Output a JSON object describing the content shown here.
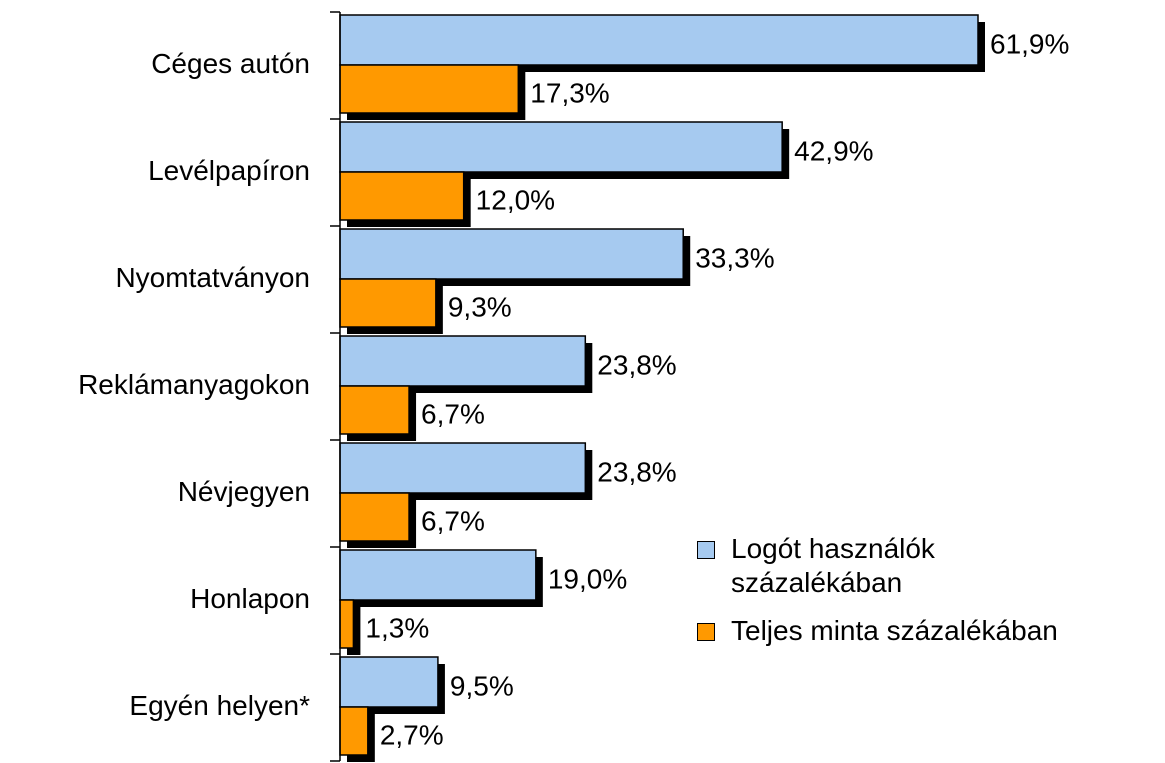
{
  "chart_data": {
    "type": "bar",
    "orientation": "horizontal",
    "categories": [
      "Céges autón",
      "Levélpapíron",
      "Nyomtatványon",
      "Reklámanyagokon",
      "Névjegyen",
      "Honlapon",
      "Egyén helyen*"
    ],
    "series": [
      {
        "name": "Logót használók százalékában",
        "color": "#a6caf0",
        "values": [
          61.9,
          42.9,
          33.3,
          23.8,
          23.8,
          19.0,
          9.5
        ],
        "value_labels": [
          "61,9%",
          "42,9%",
          "33,3%",
          "23,8%",
          "23,8%",
          "19,0%",
          "9,5%"
        ]
      },
      {
        "name": "Teljes minta százalékában",
        "color": "#ff9900",
        "values": [
          17.3,
          12.0,
          9.3,
          6.7,
          6.7,
          1.3,
          2.7
        ],
        "value_labels": [
          "17,3%",
          "12,0%",
          "9,3%",
          "6,7%",
          "6,7%",
          "1,3%",
          "2,7%"
        ]
      }
    ],
    "legend": "right"
  }
}
